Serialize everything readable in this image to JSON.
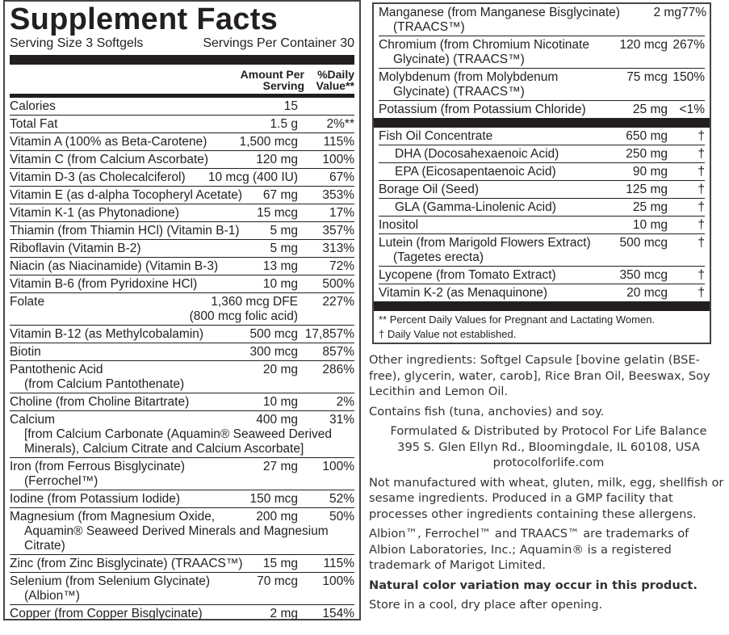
{
  "title": "Supplement Facts",
  "serving_size": "Serving Size 3 Softgels",
  "servings_per_container": "Servings Per Container 30",
  "column_headers": {
    "amount": "Amount Per Serving",
    "dv": "%Daily Value**"
  },
  "left_rows": [
    {
      "name": "Calories",
      "amount": "15"
    },
    {
      "name": "Total Fat",
      "amount": "1.5 g",
      "dv": "2%**"
    },
    {
      "name": "Vitamin A (100% as Beta-Carotene)",
      "amount": "1,500 mcg",
      "dv": "115%"
    },
    {
      "name": "Vitamin C (from Calcium Ascorbate)",
      "amount": "120 mg",
      "dv": "100%"
    },
    {
      "name": "Vitamin D-3 (as Cholecalciferol)",
      "amount": "10 mcg (400 IU)",
      "dv": "67%"
    },
    {
      "name": "Vitamin E (as d-alpha Tocopheryl Acetate)",
      "amount": "67 mg",
      "dv": "353%"
    },
    {
      "name": "Vitamin K-1 (as Phytonadione)",
      "amount": "15 mcg",
      "dv": "17%"
    },
    {
      "name": "Thiamin (from Thiamin HCl) (Vitamin B-1)",
      "amount": "5 mg",
      "dv": "357%"
    },
    {
      "name": "Riboflavin (Vitamin B-2)",
      "amount": "5 mg",
      "dv": "313%"
    },
    {
      "name": "Niacin (as Niacinamide) (Vitamin B-3)",
      "amount": "13 mg",
      "dv": "72%"
    },
    {
      "name": "Vitamin B-6 (from Pyridoxine HCl)",
      "amount": "10 mg",
      "dv": "500%"
    },
    {
      "name": "Folate",
      "amount": "1,360 mcg DFE",
      "amount_note": "(800 mcg folic acid)",
      "dv": "227%"
    },
    {
      "name": "Vitamin B-12 (as Methylcobalamin)",
      "amount": "500 mcg",
      "dv": "17,857%"
    },
    {
      "name": "Biotin",
      "amount": "300 mcg",
      "dv": "857%"
    },
    {
      "name": "Pantothenic Acid",
      "sub": "(from Calcium Pantothenate)",
      "amount": "20 mg",
      "dv": "286%"
    },
    {
      "name": "Choline (from Choline Bitartrate)",
      "amount": "10 mg",
      "dv": "2%"
    },
    {
      "name": "Calcium",
      "sub": "[from Calcium Carbonate (Aquamin® Seaweed Derived Minerals), Calcium Citrate and Calcium Ascorbate]",
      "amount": "400 mg",
      "dv": "31%"
    },
    {
      "name": "Iron (from Ferrous Bisglycinate)",
      "sub": "(Ferrochel™)",
      "amount": "27 mg",
      "dv": "100%"
    },
    {
      "name": "Iodine (from Potassium Iodide)",
      "amount": "150 mcg",
      "dv": "52%"
    },
    {
      "name": "Magnesium (from Magnesium Oxide,",
      "sub": "Aquamin® Seaweed Derived Minerals and Magnesium Citrate)",
      "amount": "200 mg",
      "dv": "50%"
    },
    {
      "name": "Zinc (from Zinc Bisglycinate) (TRAACS™)",
      "amount": "15 mg",
      "dv": "115%"
    },
    {
      "name": "Selenium (from Selenium Glycinate)",
      "sub": "(Albion™)",
      "amount": "70 mcg",
      "dv": "100%"
    },
    {
      "name": "Copper (from Copper Bisglycinate)",
      "amount": "2 mg",
      "dv": "154%"
    }
  ],
  "right_groups": [
    [
      {
        "name": "Manganese (from Manganese Bisglycinate)",
        "sub": "(TRAACS™)",
        "amount": "2 mg",
        "dv": "77%"
      },
      {
        "name": "Chromium (from Chromium Nicotinate",
        "sub": "Glycinate) (TRAACS™)",
        "amount": "120 mcg",
        "dv": "267%"
      },
      {
        "name": "Molybdenum (from Molybdenum",
        "sub": "Glycinate) (TRAACS™)",
        "amount": "75 mcg",
        "dv": "150%"
      },
      {
        "name": "Potassium (from Potassium Chloride)",
        "amount": "25 mg",
        "dv": "<1%"
      }
    ],
    [
      {
        "name": "Fish Oil Concentrate",
        "amount": "650 mg",
        "dv": "†",
        "items": [
          {
            "name": "DHA (Docosahexaenoic Acid)",
            "amount": "250 mg",
            "dv": "†"
          },
          {
            "name": "EPA (Eicosapentaenoic Acid)",
            "amount": "90 mg",
            "dv": "†"
          }
        ]
      },
      {
        "name": "Borage Oil (Seed)",
        "amount": "125 mg",
        "dv": "†",
        "items": [
          {
            "name": "GLA (Gamma-Linolenic Acid)",
            "amount": "25 mg",
            "dv": "†"
          }
        ]
      },
      {
        "name": "Inositol",
        "amount": "10 mg",
        "dv": "†"
      },
      {
        "name": "Lutein (from Marigold Flowers Extract)",
        "sub": "(Tagetes erecta)",
        "amount": "500 mcg",
        "dv": "†"
      },
      {
        "name": "Lycopene (from Tomato Extract)",
        "amount": "350 mcg",
        "dv": "†"
      },
      {
        "name": "Vitamin K-2 (as Menaquinone)",
        "amount": "20 mcg",
        "dv": "†"
      }
    ]
  ],
  "footnotes": [
    "** Percent Daily Values for Pregnant and Lactating Women.",
    "† Daily Value not established."
  ],
  "other_ingredients": "Other ingredients: Softgel Capsule [bovine gelatin (BSE-free), glycerin, water, carob], Rice Bran Oil, Beeswax, Soy Lecithin and Lemon Oil.",
  "allergens": "Contains fish (tuna, anchovies) and soy.",
  "distributor": [
    "Formulated & Distributed by Protocol For Life Balance",
    "395 S. Glen Ellyn Rd., Bloomingdale, IL 60108, USA",
    "protocolforlife.com"
  ],
  "not_manufactured": "Not manufactured with wheat, gluten, milk, egg, shellfish or sesame ingredients. Produced in a GMP facility that processes other ingredients containing these allergens.",
  "trademarks": "Albion™, Ferrochel™ and TRAACS™ are trademarks of Albion Laboratories, Inc.;  Aquamin® is a registered trademark of Marigot Limited.",
  "color_note": "Natural color variation may occur in this product.",
  "storage": "Store in a cool, dry place after opening."
}
